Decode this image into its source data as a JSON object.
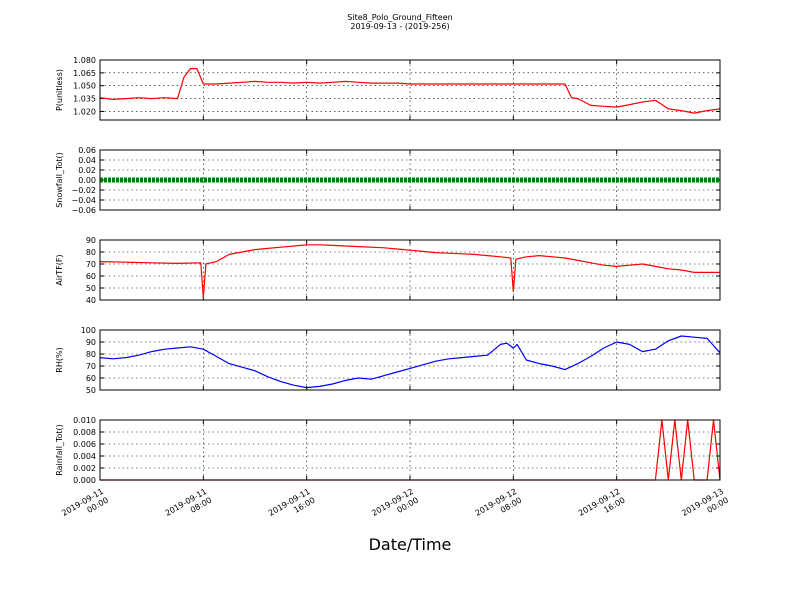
{
  "title": "Site8_Polo_Ground_Fifteen",
  "subtitle": "2019-09-13 - (2019-256)",
  "xlabel": "Date/Time",
  "x_ticks": [
    {
      "d": "2019-09-11",
      "t": "00:00"
    },
    {
      "d": "2019-09-11",
      "t": "08:00"
    },
    {
      "d": "2019-09-11",
      "t": "16:00"
    },
    {
      "d": "2019-09-12",
      "t": "00:00"
    },
    {
      "d": "2019-09-12",
      "t": "08:00"
    },
    {
      "d": "2019-09-12",
      "t": "16:00"
    },
    {
      "d": "2019-09-13",
      "t": "00:00"
    }
  ],
  "chart_data": [
    {
      "type": "line",
      "ylabel": "P(unitless)",
      "color": "#ff0000",
      "ylim": [
        1.01,
        1.08
      ],
      "yticks": [
        "1.080",
        "1.065",
        "1.050",
        "1.035",
        "1.020"
      ],
      "ytick_values": [
        1.08,
        1.065,
        1.05,
        1.035,
        1.02
      ],
      "series": [
        {
          "x": [
            0,
            1,
            2,
            3,
            4,
            5,
            6,
            6.5,
            7,
            7.5,
            8,
            9,
            10,
            11,
            12,
            13,
            14,
            15,
            16,
            17,
            18,
            19,
            20,
            21,
            22,
            23,
            24,
            25,
            26,
            27,
            28,
            29,
            30,
            31,
            32,
            33,
            34,
            35,
            36,
            36.5,
            37,
            38,
            39,
            40,
            41,
            42,
            43,
            44,
            45,
            46,
            47,
            48
          ],
          "y": [
            1.036,
            1.034,
            1.035,
            1.036,
            1.035,
            1.036,
            1.035,
            1.06,
            1.07,
            1.07,
            1.052,
            1.052,
            1.053,
            1.054,
            1.055,
            1.054,
            1.054,
            1.053,
            1.054,
            1.053,
            1.054,
            1.055,
            1.054,
            1.053,
            1.053,
            1.053,
            1.052,
            1.052,
            1.052,
            1.052,
            1.052,
            1.052,
            1.052,
            1.052,
            1.052,
            1.052,
            1.052,
            1.052,
            1.052,
            1.036,
            1.035,
            1.027,
            1.026,
            1.025,
            1.028,
            1.031,
            1.033,
            1.023,
            1.021,
            1.018,
            1.021,
            1.023
          ]
        }
      ]
    },
    {
      "type": "line",
      "ylabel": "Snowfall_Tot()",
      "color": "#008000",
      "ylim": [
        -0.06,
        0.06
      ],
      "yticks": [
        "0.06",
        "0.04",
        "0.02",
        "0.00",
        "−0.02",
        "−0.04",
        "−0.06"
      ],
      "ytick_values": [
        0.06,
        0.04,
        0.02,
        0,
        -0.02,
        -0.04,
        -0.06
      ],
      "series": [
        {
          "x": [
            0,
            48
          ],
          "y": [
            0,
            0
          ]
        }
      ]
    },
    {
      "type": "line",
      "ylabel": "AirTF(F)",
      "color": "#ff0000",
      "ylim": [
        40,
        90
      ],
      "yticks": [
        "90",
        "80",
        "70",
        "60",
        "50",
        "40"
      ],
      "ytick_values": [
        90,
        80,
        70,
        60,
        50,
        40
      ],
      "series": [
        {
          "x": [
            0,
            2,
            4,
            6,
            7.8,
            8,
            8.2,
            9,
            10,
            11,
            12,
            13,
            14,
            15,
            16,
            17,
            18,
            19,
            20,
            21,
            22,
            23,
            24,
            25,
            26,
            27,
            28,
            29,
            30,
            31,
            31.8,
            32,
            32.2,
            33,
            34,
            35,
            36,
            37,
            38,
            39,
            40,
            41,
            42,
            43,
            44,
            45,
            46,
            47,
            48
          ],
          "y": [
            72,
            71.5,
            71,
            70.5,
            71,
            42,
            70,
            72,
            78,
            80,
            82,
            83,
            84,
            85,
            86,
            86,
            85.5,
            85,
            84.5,
            84,
            83.5,
            82.5,
            81.5,
            80.5,
            79.5,
            79,
            78.5,
            78,
            77,
            76,
            75,
            47,
            74,
            76,
            77,
            76,
            75,
            73,
            71,
            69,
            68,
            69,
            70,
            68,
            66,
            65,
            63,
            63,
            63
          ]
        }
      ]
    },
    {
      "type": "line",
      "ylabel": "RH(%)",
      "color": "#0000ff",
      "ylim": [
        50,
        100
      ],
      "yticks": [
        "100",
        "90",
        "80",
        "70",
        "60",
        "50"
      ],
      "ytick_values": [
        100,
        90,
        80,
        70,
        60,
        50
      ],
      "series": [
        {
          "x": [
            0,
            1,
            2,
            3,
            4,
            5,
            6,
            7,
            8,
            9,
            10,
            11,
            12,
            13,
            14,
            15,
            16,
            17,
            18,
            19,
            20,
            21,
            22,
            23,
            24,
            25,
            26,
            27,
            28,
            29,
            30,
            31,
            31.5,
            32,
            32.3,
            33,
            34,
            35,
            36,
            37,
            38,
            39,
            40,
            41,
            42,
            43,
            44,
            45,
            46,
            47,
            48
          ],
          "y": [
            77,
            76,
            77,
            79,
            82,
            84,
            85,
            86,
            84,
            78,
            72,
            69,
            66,
            61,
            57,
            54,
            52,
            53,
            55,
            58,
            60,
            59,
            62,
            65,
            68,
            71,
            74,
            76,
            77,
            78,
            79,
            88,
            89,
            85,
            88,
            75,
            72,
            70,
            67,
            72,
            78,
            85,
            90,
            88,
            82,
            84,
            91,
            95,
            94,
            93,
            81
          ]
        }
      ]
    },
    {
      "type": "line",
      "ylabel": "Rainfall_Tot()",
      "color": "#ff0000",
      "ylim": [
        0,
        0.01
      ],
      "yticks": [
        "0.010",
        "0.008",
        "0.006",
        "0.004",
        "0.002",
        "0.000"
      ],
      "ytick_values": [
        0.01,
        0.008,
        0.006,
        0.004,
        0.002,
        0
      ],
      "series": [
        {
          "x": [
            0,
            43,
            43.5,
            44,
            44.5,
            45,
            45.5,
            46,
            46.5,
            47,
            47.5,
            48
          ],
          "y": [
            0,
            0,
            0.01,
            0,
            0.01,
            0,
            0.01,
            0,
            0,
            0,
            0.01,
            0
          ]
        }
      ]
    }
  ]
}
